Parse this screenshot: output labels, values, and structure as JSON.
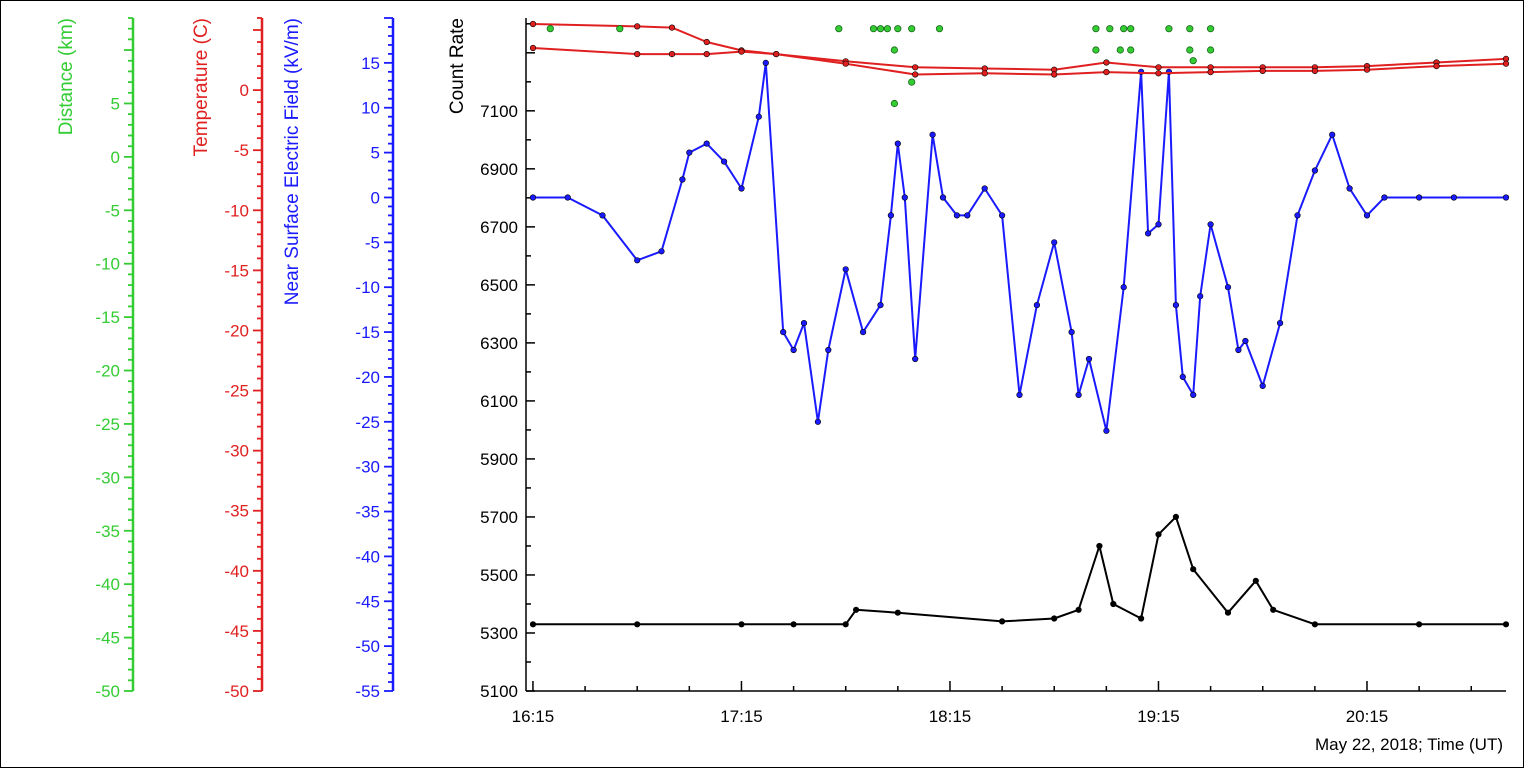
{
  "chart_data": {
    "type": "line",
    "xlabel": "May 22, 2018; Time (UT)",
    "x_ticks": [
      "16:15",
      "17:15",
      "18:15",
      "19:15",
      "20:15"
    ],
    "x_range": [
      "16:13",
      "20:55"
    ],
    "axes": [
      {
        "id": "distance",
        "label": "Distance (km)",
        "color": "#33cc33",
        "range": [
          -50,
          13
        ],
        "ticks": [
          5,
          0,
          -5,
          -10,
          -15,
          -20,
          -25,
          -30,
          -35,
          -40,
          -45,
          -50
        ]
      },
      {
        "id": "temperature",
        "label": "Temperature (C)",
        "color": "#e02020",
        "range": [
          -50,
          6
        ],
        "ticks": [
          0,
          -5,
          -10,
          -15,
          -20,
          -25,
          -30,
          -35,
          -40,
          -45,
          -50
        ]
      },
      {
        "id": "efield",
        "label": "Near Surface Electric Field (kV/m)",
        "color": "#1a1aff",
        "range": [
          -55,
          20
        ],
        "ticks": [
          15,
          10,
          5,
          0,
          -5,
          -10,
          -15,
          -20,
          -25,
          -30,
          -35,
          -40,
          -45,
          -50,
          -55
        ]
      },
      {
        "id": "count",
        "label": "Count Rate",
        "color": "#000000",
        "range": [
          5100,
          7420
        ],
        "ticks": [
          7100,
          6900,
          6700,
          6500,
          6300,
          6100,
          5900,
          5700,
          5500,
          5300,
          5100
        ]
      }
    ],
    "series": [
      {
        "axis": "efield",
        "color": "#1a1aff",
        "x": [
          "16:15",
          "16:25",
          "16:35",
          "16:45",
          "16:52",
          "16:58",
          "17:00",
          "17:05",
          "17:10",
          "17:15",
          "17:20",
          "17:22",
          "17:27",
          "17:30",
          "17:33",
          "17:37",
          "17:40",
          "17:45",
          "17:50",
          "17:55",
          "17:58",
          "18:00",
          "18:02",
          "18:05",
          "18:10",
          "18:13",
          "18:17",
          "18:20",
          "18:25",
          "18:30",
          "18:35",
          "18:40",
          "18:45",
          "18:50",
          "18:52",
          "18:55",
          "19:00",
          "19:05",
          "19:10",
          "19:12",
          "19:15",
          "19:18",
          "19:20",
          "19:22",
          "19:25",
          "19:27",
          "19:30",
          "19:35",
          "19:38",
          "19:40",
          "19:45",
          "19:50",
          "19:55",
          "20:00",
          "20:05",
          "20:10",
          "20:15",
          "20:20",
          "20:30",
          "20:40",
          "20:55"
        ],
        "y": [
          0,
          0,
          -2,
          -7,
          -6,
          2,
          5,
          6,
          4,
          1,
          9,
          15,
          -15,
          -17,
          -14,
          -25,
          -17,
          -8,
          -15,
          -12,
          -2,
          6,
          0,
          -18,
          7,
          0,
          -2,
          -2,
          1,
          -2,
          -22,
          -12,
          -5,
          -15,
          -22,
          -18,
          -26,
          -10,
          14,
          -4,
          -3,
          14,
          -12,
          -20,
          -22,
          -11,
          -3,
          -10,
          -17,
          -16,
          -21,
          -14,
          -2,
          3,
          7,
          1,
          -2,
          0,
          0,
          0,
          0
        ]
      },
      {
        "axis": "temperature",
        "color": "#e02020",
        "x": [
          "16:15",
          "16:45",
          "16:55",
          "17:05",
          "17:15",
          "17:25",
          "17:45",
          "18:05",
          "18:25",
          "18:45",
          "19:00",
          "19:15",
          "19:30",
          "19:45",
          "20:00",
          "20:15",
          "20:35",
          "20:55"
        ],
        "y": [
          5.5,
          5.3,
          5.2,
          4.0,
          3.3,
          3.0,
          2.4,
          1.9,
          1.8,
          1.7,
          2.3,
          1.9,
          1.9,
          1.9,
          1.9,
          2.0,
          2.3,
          2.6
        ]
      },
      {
        "axis": "temperature",
        "color": "#e02020",
        "x": [
          "16:15",
          "16:45",
          "16:55",
          "17:05",
          "17:15",
          "17:25",
          "17:45",
          "18:05",
          "18:25",
          "18:45",
          "19:00",
          "19:15",
          "19:30",
          "19:45",
          "20:00",
          "20:15",
          "20:35",
          "20:55"
        ],
        "y": [
          3.5,
          3.0,
          3.0,
          3.0,
          3.2,
          3.0,
          2.2,
          1.3,
          1.4,
          1.3,
          1.5,
          1.4,
          1.5,
          1.6,
          1.6,
          1.7,
          2.0,
          2.2
        ]
      },
      {
        "axis": "count",
        "color": "#000000",
        "x": [
          "16:15",
          "16:45",
          "17:15",
          "17:30",
          "17:45",
          "17:48",
          "18:00",
          "18:30",
          "18:45",
          "18:52",
          "18:58",
          "19:02",
          "19:10",
          "19:15",
          "19:20",
          "19:25",
          "19:35",
          "19:43",
          "19:48",
          "20:00",
          "20:30",
          "20:55"
        ],
        "y": [
          5330,
          5330,
          5330,
          5330,
          5330,
          5380,
          5370,
          5340,
          5350,
          5380,
          5600,
          5400,
          5350,
          5640,
          5700,
          5520,
          5370,
          5480,
          5380,
          5330,
          5330,
          5330
        ]
      }
    ],
    "distance_points": [
      [
        "16:20",
        12
      ],
      [
        "16:40",
        12
      ],
      [
        "17:43",
        12
      ],
      [
        "17:53",
        12
      ],
      [
        "17:55",
        12
      ],
      [
        "17:57",
        12
      ],
      [
        "17:59",
        10
      ],
      [
        "17:59",
        5
      ],
      [
        "18:00",
        12
      ],
      [
        "18:04",
        12
      ],
      [
        "18:04",
        7
      ],
      [
        "18:12",
        12
      ],
      [
        "18:57",
        12
      ],
      [
        "18:57",
        10
      ],
      [
        "19:01",
        12
      ],
      [
        "19:04",
        10
      ],
      [
        "19:05",
        12
      ],
      [
        "19:07",
        12
      ],
      [
        "19:07",
        10
      ],
      [
        "19:18",
        12
      ],
      [
        "19:24",
        12
      ],
      [
        "19:24",
        10
      ],
      [
        "19:25",
        9
      ],
      [
        "19:30",
        12
      ],
      [
        "19:30",
        10
      ]
    ]
  }
}
